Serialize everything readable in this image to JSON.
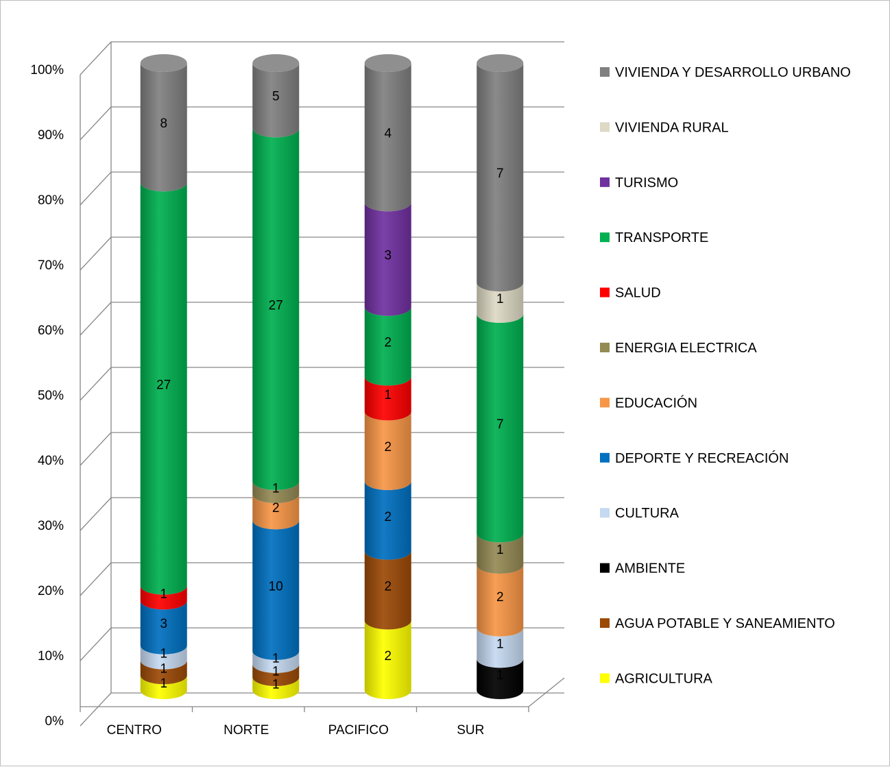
{
  "chart_data": {
    "type": "bar",
    "stacked": "percent",
    "style": "3d-cylinder",
    "categories": [
      "CENTRO",
      "NORTE",
      "PACIFICO",
      "SUR"
    ],
    "y_tick_labels": [
      "0%",
      "10%",
      "20%",
      "30%",
      "40%",
      "50%",
      "60%",
      "70%",
      "80%",
      "90%",
      "100%"
    ],
    "ylim": [
      0,
      100
    ],
    "grid": true,
    "legend_position": "right",
    "series": [
      {
        "name": "AGRICULTURA",
        "color": "#FFFF00",
        "values": [
          1,
          1,
          2,
          0
        ]
      },
      {
        "name": "AGUA POTABLE Y SANEAMIENTO",
        "color": "#9C4A06",
        "values": [
          1,
          1,
          2,
          0
        ]
      },
      {
        "name": "AMBIENTE",
        "color": "#000000",
        "values": [
          0,
          0,
          0,
          1
        ]
      },
      {
        "name": "CULTURA",
        "color": "#C5D9F1",
        "values": [
          1,
          1,
          0,
          1
        ]
      },
      {
        "name": "DEPORTE Y RECREACIÓN",
        "color": "#0070C0",
        "values": [
          3,
          10,
          2,
          0
        ]
      },
      {
        "name": "EDUCACIÓN",
        "color": "#F79646",
        "values": [
          0,
          2,
          2,
          2
        ]
      },
      {
        "name": "ENERGIA ELECTRICA",
        "color": "#948A54",
        "values": [
          0,
          1,
          0,
          1
        ]
      },
      {
        "name": "SALUD",
        "color": "#FF0000",
        "values": [
          1,
          0,
          1,
          0
        ]
      },
      {
        "name": "TRANSPORTE",
        "color": "#00B050",
        "values": [
          27,
          27,
          2,
          7
        ]
      },
      {
        "name": "TURISMO",
        "color": "#7030A0",
        "values": [
          0,
          0,
          3,
          0
        ]
      },
      {
        "name": "VIVIENDA RURAL",
        "color": "#DDD9C4",
        "values": [
          0,
          0,
          0,
          1
        ]
      },
      {
        "name": "VIVIENDA Y DESARROLLO URBANO",
        "color": "#808080",
        "values": [
          8,
          5,
          4,
          7
        ]
      }
    ]
  }
}
